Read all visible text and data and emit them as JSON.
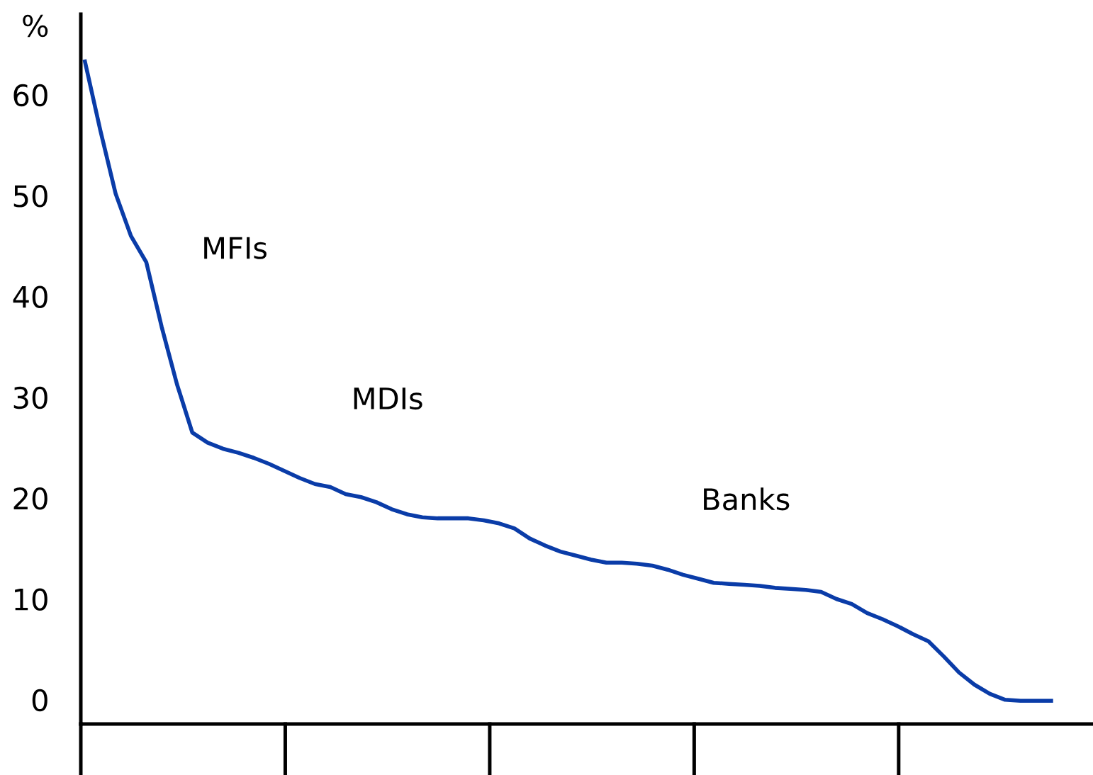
{
  "chart_data": {
    "type": "line",
    "ylabel": "%",
    "categories": [
      null,
      null,
      null,
      null,
      null,
      null,
      null,
      null,
      null,
      null,
      null,
      null,
      null,
      null,
      null,
      null,
      null,
      null,
      null,
      null,
      null,
      null,
      null,
      null,
      null,
      null,
      null,
      null,
      null,
      null,
      null,
      null,
      null,
      null,
      null,
      null,
      null,
      null,
      null,
      null,
      null,
      null,
      null,
      null,
      null,
      null,
      null,
      null,
      null,
      null,
      null,
      null,
      null,
      null,
      null,
      null,
      null,
      null,
      null,
      null,
      null,
      null,
      null,
      null
    ],
    "series": [
      {
        "color": "#0a3ca8",
        "values": [
          63.3,
          56.5,
          50.2,
          46.0,
          43.4,
          37.0,
          31.3,
          26.5,
          25.5,
          24.9,
          24.5,
          24.0,
          23.4,
          22.7,
          22.0,
          21.4,
          21.1,
          20.4,
          20.1,
          19.6,
          18.9,
          18.4,
          18.1,
          18.0,
          18.0,
          18.0,
          17.8,
          17.5,
          17.0,
          16.0,
          15.3,
          14.7,
          14.3,
          13.9,
          13.6,
          13.6,
          13.5,
          13.3,
          12.9,
          12.4,
          12.0,
          11.6,
          11.5,
          11.4,
          11.3,
          11.1,
          11.0,
          10.9,
          10.7,
          10.0,
          9.5,
          8.6,
          8.0,
          7.3,
          6.5,
          5.8,
          4.3,
          2.7,
          1.5,
          0.6,
          0.0,
          -0.1,
          -0.1,
          -0.1
        ]
      }
    ],
    "ylim": [
      -2.4,
      68
    ],
    "yticks": [
      0,
      10,
      20,
      30,
      40,
      50,
      60
    ],
    "tick_labels": "y",
    "annotations": [
      "MFIs",
      "MDIs",
      "Banks"
    ]
  }
}
